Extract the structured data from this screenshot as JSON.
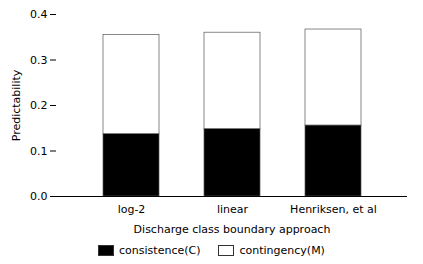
{
  "chart_data": {
    "type": "bar",
    "stacked": true,
    "categories": [
      "log-2",
      "linear",
      "Henriksen, et al"
    ],
    "series": [
      {
        "name": "consistence(C)",
        "color": "#000000",
        "values": [
          0.137,
          0.148,
          0.156
        ]
      },
      {
        "name": "contingency(M)",
        "color": "#ffffff",
        "values": [
          0.218,
          0.212,
          0.211
        ]
      }
    ],
    "xlabel": "Discharge class boundary approach",
    "ylabel": "Predictability",
    "ylim": [
      0.0,
      0.4
    ],
    "yticks": [
      {
        "value": 0.0,
        "label": "0.0"
      },
      0.1,
      0.2,
      0.3,
      0.4
    ],
    "grid": false,
    "legend": "bottom"
  }
}
